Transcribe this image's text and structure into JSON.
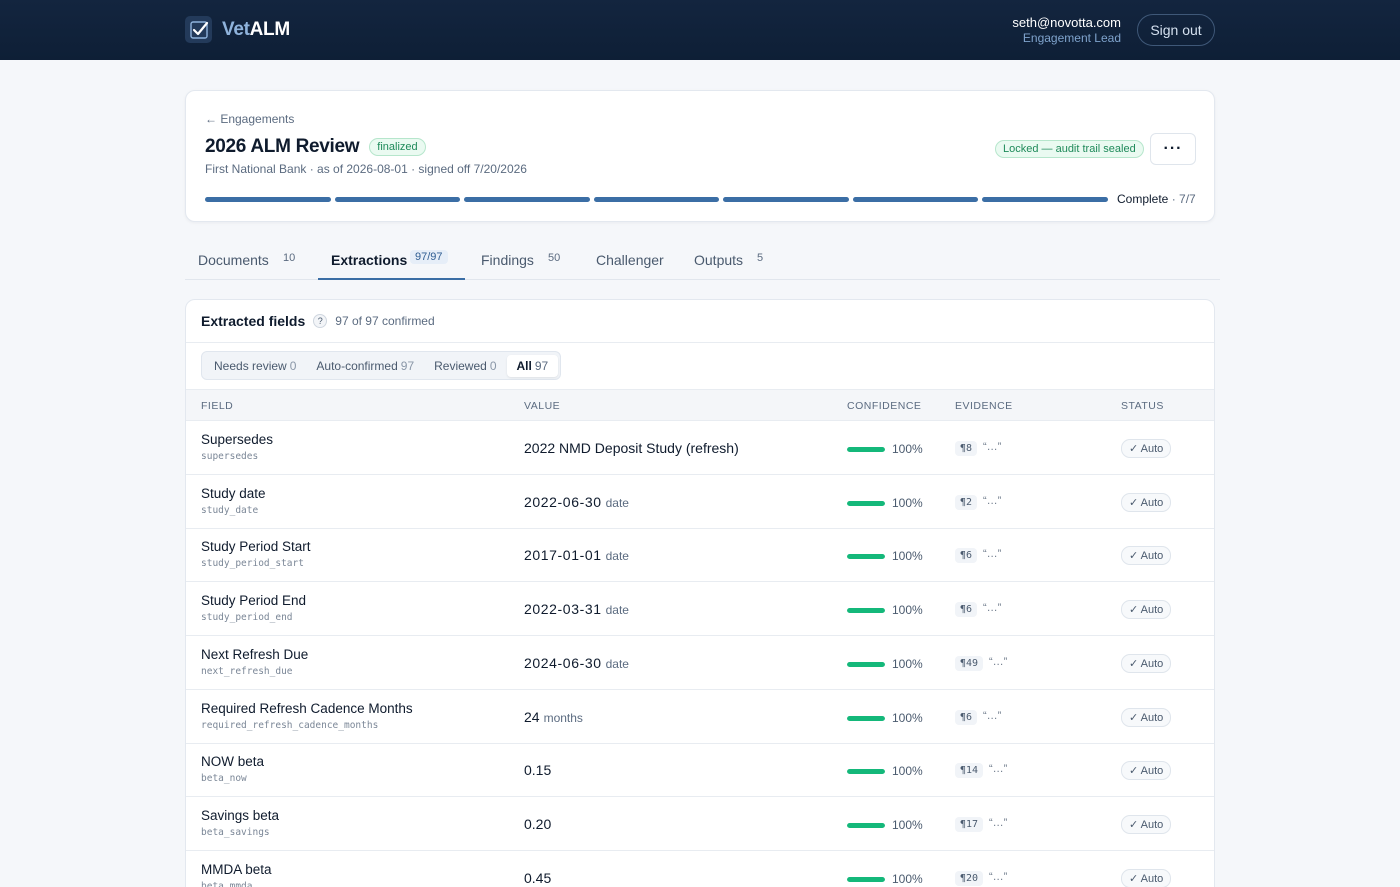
{
  "app": {
    "brand_prefix": "Vet",
    "brand_suffix": "ALM"
  },
  "user": {
    "email": "seth@novotta.com",
    "role": "Engagement Lead",
    "signout_label": "Sign out"
  },
  "engagement": {
    "breadcrumb": "← Engagements",
    "title": "2026 ALM Review",
    "status_badge": "finalized",
    "subtitle": "First National Bank · as of 2026-08-01 · signed off 7/20/2026",
    "locked_badge": "Locked — audit trail sealed",
    "more_label": "···",
    "progress": {
      "completed_steps": 7,
      "total_steps": 7,
      "label": "Complete",
      "count": "· 7/7"
    }
  },
  "tabs": [
    {
      "label": "Documents",
      "count": "10"
    },
    {
      "label": "Extractions",
      "count": "97/97"
    },
    {
      "label": "Findings",
      "count": "50"
    },
    {
      "label": "Challenger",
      "count": ""
    },
    {
      "label": "Outputs",
      "count": "5"
    }
  ],
  "extractions": {
    "title": "Extracted fields",
    "help_label": "?",
    "summary": "97 of 97 confirmed",
    "filters": [
      {
        "label": "Needs review",
        "count": "0"
      },
      {
        "label": "Auto-confirmed",
        "count": "97"
      },
      {
        "label": "Reviewed",
        "count": "0"
      },
      {
        "label": "All",
        "count": "97"
      }
    ],
    "columns": {
      "field": "FIELD",
      "value": "VALUE",
      "confidence": "CONFIDENCE",
      "evidence": "EVIDENCE",
      "status": "STATUS"
    },
    "rows": [
      {
        "name": "Supersedes",
        "key": "supersedes",
        "value": "2022 NMD Deposit Study (refresh)",
        "type": "",
        "confidence": 1.0,
        "confidence_label": "100%",
        "evidence": "¶8",
        "quote": "“…”",
        "status": "✓ Auto"
      },
      {
        "name": "Study date",
        "key": "study_date",
        "value": "2022-06-30",
        "type": "date",
        "confidence": 1.0,
        "confidence_label": "100%",
        "evidence": "¶2",
        "quote": "“…”",
        "status": "✓ Auto"
      },
      {
        "name": "Study Period Start",
        "key": "study_period_start",
        "value": "2017-01-01",
        "type": "date",
        "confidence": 1.0,
        "confidence_label": "100%",
        "evidence": "¶6",
        "quote": "“…”",
        "status": "✓ Auto"
      },
      {
        "name": "Study Period End",
        "key": "study_period_end",
        "value": "2022-03-31",
        "type": "date",
        "confidence": 1.0,
        "confidence_label": "100%",
        "evidence": "¶6",
        "quote": "“…”",
        "status": "✓ Auto"
      },
      {
        "name": "Next Refresh Due",
        "key": "next_refresh_due",
        "value": "2024-06-30",
        "type": "date",
        "confidence": 1.0,
        "confidence_label": "100%",
        "evidence": "¶49",
        "quote": "“…”",
        "status": "✓ Auto"
      },
      {
        "name": "Required Refresh Cadence Months",
        "key": "required_refresh_cadence_months",
        "value": "24",
        "type": "months",
        "confidence": 1.0,
        "confidence_label": "100%",
        "evidence": "¶6",
        "quote": "“…”",
        "status": "✓ Auto"
      },
      {
        "name": "NOW beta",
        "key": "beta_now",
        "value": "0.15",
        "type": "",
        "confidence": 1.0,
        "confidence_label": "100%",
        "evidence": "¶14",
        "quote": "“…”",
        "status": "✓ Auto"
      },
      {
        "name": "Savings beta",
        "key": "beta_savings",
        "value": "0.20",
        "type": "",
        "confidence": 1.0,
        "confidence_label": "100%",
        "evidence": "¶17",
        "quote": "“…”",
        "status": "✓ Auto"
      },
      {
        "name": "MMDA beta",
        "key": "beta_mmda",
        "value": "0.45",
        "type": "",
        "confidence": 1.0,
        "confidence_label": "100%",
        "evidence": "¶20",
        "quote": "“…”",
        "status": "✓ Auto"
      }
    ]
  },
  "colors": {
    "accent": "#3b6ea5",
    "success": "#14b87a",
    "topbar": "#13253f"
  }
}
